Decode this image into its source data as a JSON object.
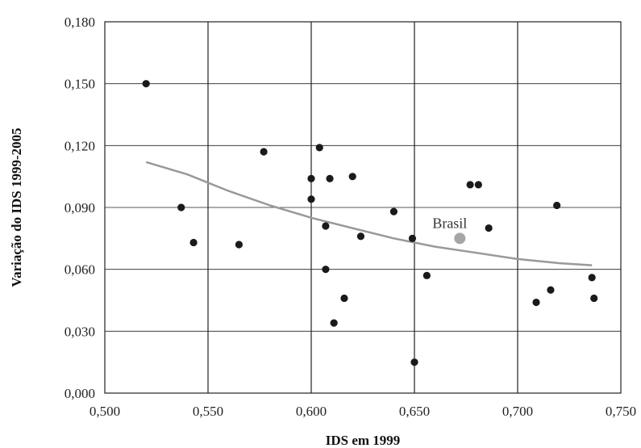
{
  "chart_data": {
    "type": "scatter",
    "title": "",
    "xlabel": "IDS em 1999",
    "ylabel": "Variação do IDS 1999-2005",
    "xlim": [
      0.5,
      0.75
    ],
    "ylim": [
      0.0,
      0.18
    ],
    "x_ticks": [
      0.5,
      0.55,
      0.6,
      0.65,
      0.7,
      0.75
    ],
    "y_ticks": [
      0.0,
      0.03,
      0.06,
      0.09,
      0.12,
      0.15,
      0.18
    ],
    "x_tick_labels": [
      "0,500",
      "0,550",
      "0,600",
      "0,650",
      "0,700",
      "0,750"
    ],
    "y_tick_labels": [
      "0,000",
      "0,030",
      "0,060",
      "0,090",
      "0,120",
      "0,150",
      "0,180"
    ],
    "grid": {
      "vertical": true,
      "horizontal": true
    },
    "points": [
      {
        "x": 0.52,
        "y": 0.15
      },
      {
        "x": 0.537,
        "y": 0.09
      },
      {
        "x": 0.543,
        "y": 0.073
      },
      {
        "x": 0.565,
        "y": 0.072
      },
      {
        "x": 0.577,
        "y": 0.117
      },
      {
        "x": 0.6,
        "y": 0.104
      },
      {
        "x": 0.6,
        "y": 0.094
      },
      {
        "x": 0.604,
        "y": 0.119
      },
      {
        "x": 0.607,
        "y": 0.081
      },
      {
        "x": 0.607,
        "y": 0.06
      },
      {
        "x": 0.609,
        "y": 0.104
      },
      {
        "x": 0.611,
        "y": 0.034
      },
      {
        "x": 0.616,
        "y": 0.046
      },
      {
        "x": 0.62,
        "y": 0.105
      },
      {
        "x": 0.624,
        "y": 0.076
      },
      {
        "x": 0.64,
        "y": 0.088
      },
      {
        "x": 0.649,
        "y": 0.075
      },
      {
        "x": 0.65,
        "y": 0.015
      },
      {
        "x": 0.656,
        "y": 0.057
      },
      {
        "x": 0.677,
        "y": 0.101
      },
      {
        "x": 0.681,
        "y": 0.101
      },
      {
        "x": 0.686,
        "y": 0.08
      },
      {
        "x": 0.709,
        "y": 0.044
      },
      {
        "x": 0.716,
        "y": 0.05
      },
      {
        "x": 0.719,
        "y": 0.091
      },
      {
        "x": 0.736,
        "y": 0.056
      },
      {
        "x": 0.737,
        "y": 0.046
      }
    ],
    "highlight": {
      "label": "Brasil",
      "x": 0.672,
      "y": 0.075,
      "color": "#a6a6a6"
    },
    "trend": {
      "x": [
        0.52,
        0.54,
        0.56,
        0.58,
        0.6,
        0.62,
        0.64,
        0.66,
        0.68,
        0.7,
        0.72,
        0.736
      ],
      "y": [
        0.112,
        0.106,
        0.098,
        0.091,
        0.085,
        0.08,
        0.075,
        0.071,
        0.068,
        0.065,
        0.063,
        0.062
      ],
      "color": "#999999"
    },
    "colors": {
      "point": "#1a1a1a",
      "grid": "#222222",
      "frame": "#222222"
    }
  }
}
